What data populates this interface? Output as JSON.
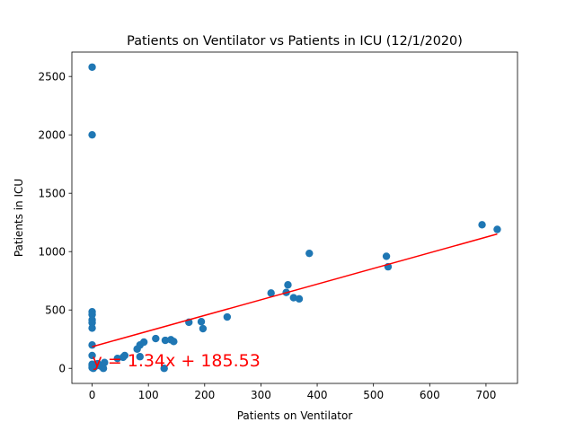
{
  "chart_data": {
    "type": "scatter",
    "title": "Patients on Ventilator vs Patients in ICU (12/1/2020)",
    "xlabel": "Patients on Ventilator",
    "ylabel": "Patients in ICU",
    "xlim": [
      -36,
      756
    ],
    "ylim": [
      -129,
      2709
    ],
    "xticks": [
      0,
      100,
      200,
      300,
      400,
      500,
      600,
      700
    ],
    "yticks": [
      0,
      500,
      1000,
      1500,
      2000,
      2500
    ],
    "grid": false,
    "legend": "none",
    "points": [
      {
        "x": 0,
        "y": 2580
      },
      {
        "x": 0,
        "y": 2000
      },
      {
        "x": 0,
        "y": 485
      },
      {
        "x": 0,
        "y": 460
      },
      {
        "x": 0,
        "y": 415
      },
      {
        "x": 0,
        "y": 390
      },
      {
        "x": 0,
        "y": 345
      },
      {
        "x": 0,
        "y": 200
      },
      {
        "x": 0,
        "y": 110
      },
      {
        "x": 0,
        "y": 35
      },
      {
        "x": 0,
        "y": 20
      },
      {
        "x": 0,
        "y": 5
      },
      {
        "x": 2,
        "y": 0
      },
      {
        "x": 5,
        "y": 15
      },
      {
        "x": 10,
        "y": 40
      },
      {
        "x": 15,
        "y": 20
      },
      {
        "x": 20,
        "y": 0
      },
      {
        "x": 22,
        "y": 50
      },
      {
        "x": 45,
        "y": 85
      },
      {
        "x": 55,
        "y": 95
      },
      {
        "x": 58,
        "y": 110
      },
      {
        "x": 80,
        "y": 165
      },
      {
        "x": 85,
        "y": 200
      },
      {
        "x": 85,
        "y": 100
      },
      {
        "x": 92,
        "y": 225
      },
      {
        "x": 113,
        "y": 255
      },
      {
        "x": 128,
        "y": 0
      },
      {
        "x": 130,
        "y": 240
      },
      {
        "x": 140,
        "y": 245
      },
      {
        "x": 145,
        "y": 230
      },
      {
        "x": 172,
        "y": 395
      },
      {
        "x": 194,
        "y": 400
      },
      {
        "x": 197,
        "y": 340
      },
      {
        "x": 240,
        "y": 440
      },
      {
        "x": 318,
        "y": 645
      },
      {
        "x": 345,
        "y": 650
      },
      {
        "x": 348,
        "y": 715
      },
      {
        "x": 358,
        "y": 605
      },
      {
        "x": 368,
        "y": 595
      },
      {
        "x": 386,
        "y": 985
      },
      {
        "x": 523,
        "y": 960
      },
      {
        "x": 526,
        "y": 870
      },
      {
        "x": 693,
        "y": 1230
      },
      {
        "x": 720,
        "y": 1190
      }
    ],
    "regression": {
      "slope": 1.34,
      "intercept": 185.53,
      "x_range": [
        0,
        720
      ]
    },
    "annotation": "y = 1.34x + 185.53",
    "colors": {
      "points": "#1f77b4",
      "regression": "#ff0000",
      "annotation": "#ff0000"
    }
  }
}
